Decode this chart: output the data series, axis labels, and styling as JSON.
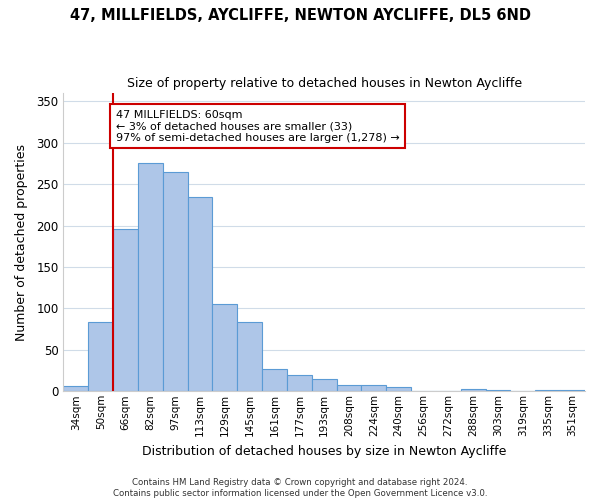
{
  "title": "47, MILLFIELDS, AYCLIFFE, NEWTON AYCLIFFE, DL5 6ND",
  "subtitle": "Size of property relative to detached houses in Newton Aycliffe",
  "xlabel": "Distribution of detached houses by size in Newton Aycliffe",
  "ylabel": "Number of detached properties",
  "bar_labels": [
    "34sqm",
    "50sqm",
    "66sqm",
    "82sqm",
    "97sqm",
    "113sqm",
    "129sqm",
    "145sqm",
    "161sqm",
    "177sqm",
    "193sqm",
    "208sqm",
    "224sqm",
    "240sqm",
    "256sqm",
    "272sqm",
    "288sqm",
    "303sqm",
    "319sqm",
    "335sqm",
    "351sqm"
  ],
  "bar_values": [
    6,
    84,
    196,
    275,
    265,
    235,
    105,
    84,
    27,
    20,
    15,
    8,
    8,
    5,
    0,
    0,
    3,
    2,
    0,
    2,
    2
  ],
  "bar_color": "#aec6e8",
  "bar_edge_color": "#5b9bd5",
  "vline_color": "#cc0000",
  "vline_x": 1.5,
  "annotation_title": "47 MILLFIELDS: 60sqm",
  "annotation_line1": "← 3% of detached houses are smaller (33)",
  "annotation_line2": "97% of semi-detached houses are larger (1,278) →",
  "annotation_box_color": "#cc0000",
  "ylim": [
    0,
    360
  ],
  "yticks": [
    0,
    50,
    100,
    150,
    200,
    250,
    300,
    350
  ],
  "footer1": "Contains HM Land Registry data © Crown copyright and database right 2024.",
  "footer2": "Contains public sector information licensed under the Open Government Licence v3.0.",
  "background_color": "#ffffff",
  "grid_color": "#d0dce8"
}
